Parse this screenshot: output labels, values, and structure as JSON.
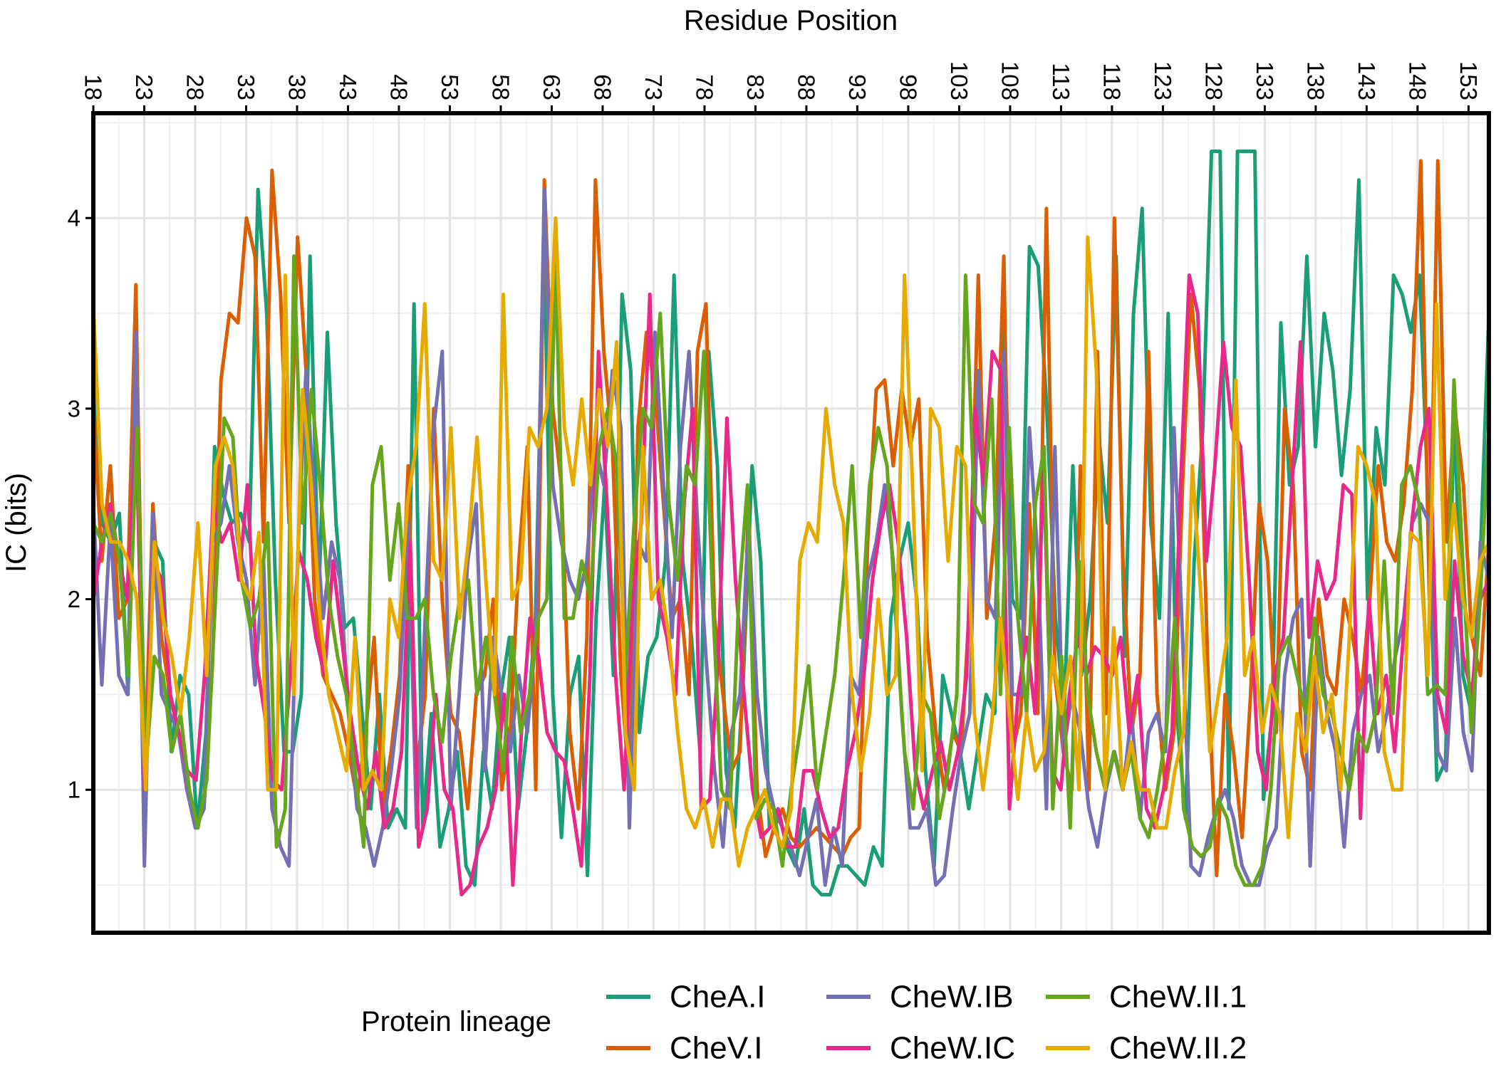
{
  "chart_data": {
    "type": "line",
    "title": "",
    "xlabel": "Residue Position",
    "ylabel": "IC (bits)",
    "xlim": [
      18,
      155
    ],
    "ylim": [
      0.25,
      4.55
    ],
    "x_ticks": [
      18,
      23,
      28,
      33,
      38,
      43,
      48,
      53,
      58,
      63,
      68,
      73,
      78,
      83,
      88,
      93,
      98,
      103,
      108,
      113,
      118,
      123,
      128,
      133,
      138,
      143,
      148,
      153
    ],
    "y_ticks": [
      1,
      2,
      3,
      4
    ],
    "grid": true,
    "x_axis_position": "top",
    "legend": {
      "title": "Protein lineage",
      "position": "bottom"
    },
    "series": [
      {
        "name": "CheA.I",
        "color": "#1b9e77",
        "values": [
          3.35,
          2.4,
          2.3,
          2.45,
          1.5,
          3.2,
          1.0,
          2.3,
          2.2,
          1.2,
          1.6,
          1.5,
          0.8,
          1.3,
          2.8,
          2.55,
          2.4,
          2.45,
          2.3,
          4.15,
          3.5,
          2.1,
          1.2,
          1.2,
          1.5,
          3.8,
          2.0,
          3.4,
          2.4,
          1.85,
          1.9,
          1.4,
          0.9,
          1.5,
          0.8,
          0.9,
          0.8,
          3.55,
          0.8,
          1.4,
          0.7,
          0.9,
          1.2,
          0.6,
          0.5,
          1.2,
          0.9,
          1.5,
          1.8,
          0.9,
          1.3,
          1.9,
          3.9,
          1.5,
          0.75,
          1.5,
          1.7,
          0.55,
          1.9,
          2.6,
          1.6,
          3.6,
          3.2,
          1.3,
          1.7,
          1.8,
          2.2,
          3.7,
          2.2,
          1.8,
          1.2,
          3.3,
          2.7,
          1.1,
          0.8,
          1.6,
          2.7,
          2.2,
          0.8,
          0.9,
          0.7,
          0.6,
          0.9,
          0.5,
          0.45,
          0.45,
          0.6,
          0.6,
          0.55,
          0.5,
          0.7,
          0.6,
          1.9,
          2.2,
          2.4,
          2.0,
          1.1,
          0.6,
          1.6,
          1.4,
          1.2,
          0.9,
          1.2,
          1.5,
          1.4,
          3.6,
          2.0,
          1.9,
          3.85,
          3.75,
          3.0,
          1.9,
          1.4,
          2.7,
          1.6,
          2.0,
          2.85,
          2.4,
          3.8,
          1.7,
          3.5,
          4.05,
          2.4,
          1.9,
          3.5,
          1.4,
          0.85,
          2.2,
          2.9,
          4.35,
          4.35,
          0.9,
          4.35,
          4.35,
          4.35,
          0.95,
          1.4,
          3.45,
          2.6,
          2.8,
          3.8,
          2.8,
          3.5,
          3.2,
          2.65,
          3.1,
          4.2,
          2.0,
          2.9,
          2.6,
          3.7,
          3.6,
          3.4,
          3.7,
          2.5,
          1.05,
          1.15,
          3.0,
          1.6,
          1.4,
          2.2,
          3.5
        ]
      },
      {
        "name": "CheV.I",
        "color": "#d95f02",
        "values": [
          3.0,
          2.2,
          2.7,
          1.9,
          2.0,
          3.65,
          1.0,
          2.5,
          1.8,
          1.5,
          1.3,
          1.0,
          0.8,
          0.9,
          1.65,
          3.15,
          3.5,
          3.45,
          4.0,
          3.8,
          2.3,
          4.25,
          3.6,
          2.4,
          3.9,
          3.2,
          2.0,
          1.6,
          1.5,
          1.4,
          1.2,
          0.95,
          1.3,
          1.8,
          0.9,
          1.2,
          1.6,
          2.7,
          1.1,
          1.5,
          3.0,
          2.0,
          1.4,
          1.3,
          0.9,
          1.5,
          1.6,
          2.0,
          1.0,
          1.3,
          2.2,
          2.8,
          1.0,
          4.2,
          3.0,
          2.6,
          1.3,
          0.9,
          1.8,
          4.2,
          3.3,
          2.8,
          1.6,
          1.0,
          2.9,
          3.4,
          3.1,
          2.5,
          1.9,
          2.0,
          1.5,
          3.3,
          3.55,
          1.9,
          1.5,
          1.1,
          1.2,
          2.5,
          1.0,
          0.65,
          0.8,
          0.9,
          0.75,
          0.7,
          0.75,
          0.8,
          0.75,
          0.7,
          0.65,
          0.75,
          0.8,
          2.3,
          3.1,
          3.15,
          2.7,
          3.1,
          2.8,
          3.05,
          1.8,
          1.3,
          1.0,
          1.3,
          1.2,
          2.0,
          3.7,
          1.9,
          2.4,
          3.8,
          1.2,
          1.4,
          2.5,
          1.4,
          4.05,
          1.6,
          1.2,
          1.0,
          2.7,
          1.0,
          3.3,
          1.4,
          4.0,
          2.2,
          1.3,
          1.6,
          3.3,
          1.5,
          1.0,
          1.3,
          2.6,
          3.6,
          3.1,
          1.6,
          0.55,
          1.5,
          1.2,
          0.75,
          1.5,
          2.5,
          2.2,
          1.3,
          3.0,
          2.6,
          1.2,
          1.0,
          2.0,
          1.6,
          1.5,
          2.0,
          1.8,
          1.5,
          2.0,
          2.7,
          2.3,
          2.2,
          2.5,
          3.1,
          4.3,
          2.0,
          4.3,
          2.3,
          3.0,
          2.6,
          1.8,
          1.6,
          2.3
        ]
      },
      {
        "name": "CheW.IB",
        "color": "#7570b3",
        "values": [
          2.5,
          1.55,
          2.4,
          1.6,
          1.5,
          3.4,
          0.6,
          2.45,
          1.5,
          1.4,
          1.3,
          1.0,
          0.8,
          0.9,
          2.3,
          2.4,
          2.7,
          2.3,
          2.1,
          1.55,
          2.2,
          0.9,
          0.7,
          0.6,
          2.2,
          3.2,
          2.5,
          1.9,
          2.3,
          2.1,
          1.4,
          0.9,
          0.8,
          0.6,
          0.8,
          1.1,
          1.5,
          2.4,
          0.8,
          1.9,
          2.9,
          3.3,
          0.9,
          1.5,
          2.2,
          2.5,
          1.1,
          1.8,
          1.5,
          1.2,
          1.6,
          1.3,
          1.8,
          4.15,
          2.6,
          2.3,
          2.1,
          2.0,
          2.2,
          2.8,
          2.6,
          3.2,
          2.9,
          0.8,
          2.3,
          2.2,
          3.4,
          2.6,
          1.8,
          2.8,
          3.3,
          2.4,
          1.7,
          1.1,
          0.7,
          1.3,
          1.5,
          2.4,
          1.5,
          1.1,
          0.9,
          0.8,
          0.7,
          0.55,
          0.75,
          0.95,
          0.5,
          0.8,
          0.6,
          1.6,
          1.5,
          2.1,
          2.3,
          2.6,
          2.2,
          1.4,
          0.8,
          0.8,
          0.9,
          0.5,
          0.55,
          0.9,
          1.2,
          1.4,
          3.2,
          2.0,
          1.9,
          3.3,
          1.5,
          1.5,
          2.9,
          2.2,
          0.9,
          2.8,
          1.2,
          1.5,
          1.3,
          0.9,
          0.7,
          1.0,
          1.2,
          1.0,
          1.4,
          0.85,
          1.3,
          1.4,
          1.2,
          2.9,
          1.8,
          0.6,
          0.55,
          0.75,
          0.9,
          1.0,
          0.85,
          0.6,
          0.5,
          0.5,
          0.7,
          0.8,
          1.6,
          1.9,
          2.0,
          0.6,
          1.8,
          1.4,
          1.2,
          0.7,
          1.3,
          1.5,
          1.6,
          1.2,
          1.4,
          1.7,
          1.9,
          2.4,
          2.5,
          2.4,
          1.2,
          1.1,
          1.9,
          1.3,
          1.1,
          2.3,
          2.1
        ]
      },
      {
        "name": "CheW.IC",
        "color": "#e7298a",
        "values": [
          2.0,
          2.3,
          2.5,
          2.2,
          2.0,
          2.9,
          1.0,
          2.2,
          2.1,
          1.5,
          1.3,
          1.1,
          1.05,
          1.6,
          2.5,
          2.3,
          2.4,
          2.1,
          2.6,
          1.7,
          1.4,
          1.05,
          1.0,
          1.6,
          2.25,
          2.1,
          1.8,
          1.6,
          2.2,
          1.8,
          1.4,
          1.1,
          0.9,
          1.2,
          0.8,
          0.9,
          1.2,
          2.3,
          0.7,
          0.9,
          1.5,
          1.0,
          0.9,
          0.45,
          0.5,
          0.7,
          0.8,
          1.0,
          1.5,
          0.5,
          1.3,
          1.9,
          1.7,
          1.3,
          1.2,
          1.15,
          0.9,
          0.6,
          1.6,
          3.3,
          2.5,
          1.6,
          1.0,
          2.0,
          2.4,
          3.6,
          2.0,
          1.8,
          1.5,
          2.5,
          3.0,
          0.9,
          0.95,
          1.7,
          2.95,
          2.1,
          1.5,
          1.0,
          0.75,
          0.8,
          0.9,
          0.7,
          0.7,
          1.1,
          1.1,
          0.9,
          0.75,
          0.8,
          1.1,
          1.3,
          1.6,
          2.1,
          2.4,
          2.6,
          2.3,
          1.8,
          1.1,
          0.9,
          1.1,
          1.25,
          1.0,
          1.2,
          1.6,
          3.0,
          2.6,
          3.3,
          3.2,
          0.9,
          1.5,
          1.8,
          1.4,
          2.7,
          1.1,
          1.0,
          1.5,
          1.8,
          1.6,
          1.75,
          1.7,
          1.6,
          1.8,
          1.3,
          1.6,
          0.9,
          0.8,
          1.0,
          1.3,
          2.6,
          3.7,
          3.5,
          2.2,
          2.7,
          3.35,
          2.9,
          2.8,
          2.1,
          1.2,
          1.0,
          1.6,
          1.8,
          2.6,
          3.35,
          1.8,
          2.2,
          2.0,
          2.1,
          2.6,
          2.55,
          0.85,
          2.0,
          1.4,
          1.6,
          1.2,
          1.8,
          2.4,
          2.8,
          3.0,
          1.5,
          1.3,
          2.2,
          1.7,
          1.5,
          2.0,
          2.1
        ]
      },
      {
        "name": "CheW.II.1",
        "color": "#66a61e",
        "values": [
          2.4,
          2.3,
          2.45,
          2.2,
          1.6,
          2.9,
          1.1,
          1.7,
          1.6,
          1.2,
          1.4,
          1.0,
          0.8,
          1.05,
          2.0,
          2.95,
          2.85,
          2.1,
          1.85,
          2.0,
          2.4,
          0.7,
          0.9,
          3.8,
          2.4,
          3.1,
          2.6,
          2.0,
          1.7,
          1.5,
          1.1,
          0.7,
          2.6,
          2.8,
          2.1,
          2.5,
          1.9,
          1.9,
          2.0,
          1.5,
          1.25,
          1.7,
          2.0,
          2.1,
          1.5,
          1.8,
          1.5,
          1.1,
          1.8,
          1.3,
          1.5,
          1.9,
          2.0,
          3.8,
          1.9,
          1.9,
          2.2,
          2.0,
          2.8,
          3.0,
          2.7,
          1.6,
          2.4,
          3.0,
          2.9,
          3.5,
          2.5,
          2.1,
          2.7,
          2.6,
          3.3,
          2.0,
          1.0,
          0.9,
          2.0,
          2.6,
          0.85,
          0.95,
          0.9,
          0.6,
          1.0,
          1.3,
          1.65,
          1.0,
          1.3,
          1.6,
          2.1,
          2.7,
          1.8,
          2.6,
          2.9,
          2.7,
          1.9,
          1.2,
          0.9,
          1.5,
          1.4,
          0.85,
          1.1,
          1.5,
          3.7,
          2.5,
          2.4,
          3.05,
          1.5,
          2.9,
          1.9,
          1.4,
          2.5,
          2.8,
          0.9,
          1.7,
          0.8,
          2.2,
          1.5,
          1.2,
          1.0,
          1.2,
          1.0,
          1.2,
          0.85,
          0.75,
          1.0,
          1.3,
          1.9,
          0.9,
          0.7,
          0.65,
          0.7,
          0.95,
          0.85,
          0.6,
          0.5,
          0.5,
          0.6,
          1.0,
          1.7,
          1.8,
          1.6,
          1.4,
          1.9,
          1.5,
          1.4,
          1.2,
          1.0,
          1.3,
          1.2,
          1.4,
          2.2,
          1.4,
          2.6,
          2.7,
          2.5,
          1.5,
          1.55,
          1.5,
          3.15,
          2.2,
          1.3,
          2.0,
          2.9
        ]
      },
      {
        "name": "CheW.II.2",
        "color": "#e6ab02",
        "values": [
          3.55,
          2.5,
          2.3,
          2.3,
          2.2,
          2.0,
          1.0,
          2.3,
          1.9,
          1.7,
          1.4,
          1.8,
          2.4,
          1.6,
          2.7,
          2.85,
          2.7,
          2.1,
          2.0,
          2.35,
          1.0,
          1.0,
          3.7,
          1.5,
          3.1,
          2.6,
          1.9,
          1.5,
          1.3,
          1.1,
          1.8,
          1.0,
          1.1,
          1.0,
          2.0,
          1.8,
          2.5,
          2.8,
          3.55,
          2.2,
          2.1,
          2.9,
          1.9,
          2.3,
          2.85,
          2.1,
          1.5,
          3.6,
          2.0,
          2.1,
          2.9,
          2.8,
          3.0,
          4.0,
          2.9,
          2.6,
          3.05,
          2.6,
          3.1,
          2.8,
          3.35,
          1.3,
          1.0,
          2.8,
          2.0,
          2.1,
          1.8,
          1.3,
          0.9,
          0.8,
          0.95,
          0.7,
          0.95,
          0.95,
          0.6,
          0.8,
          0.9,
          1.0,
          0.8,
          0.7,
          0.9,
          2.2,
          2.4,
          2.3,
          3.0,
          2.6,
          2.4,
          1.5,
          1.1,
          1.4,
          2.0,
          1.5,
          1.6,
          3.7,
          2.5,
          1.1,
          3.0,
          2.9,
          2.2,
          2.8,
          2.7,
          1.4,
          1.0,
          1.35,
          1.9,
          1.4,
          0.95,
          1.4,
          1.1,
          1.2,
          1.7,
          1.4,
          1.7,
          1.0,
          3.9,
          3.2,
          1.0,
          1.85,
          1.0,
          1.25,
          1.0,
          1.0,
          0.8,
          0.8,
          1.1,
          1.3,
          2.7,
          2.0,
          1.2,
          1.5,
          1.8,
          3.15,
          1.6,
          1.8,
          1.3,
          1.55,
          1.4,
          0.75,
          1.4,
          1.2,
          1.7,
          1.3,
          1.5,
          1.0,
          1.8,
          2.8,
          2.7,
          2.5,
          1.2,
          1.0,
          1.0,
          2.35,
          2.3,
          1.6,
          3.55,
          2.0,
          2.5,
          2.0,
          1.8,
          2.2,
          2.3
        ]
      }
    ]
  }
}
